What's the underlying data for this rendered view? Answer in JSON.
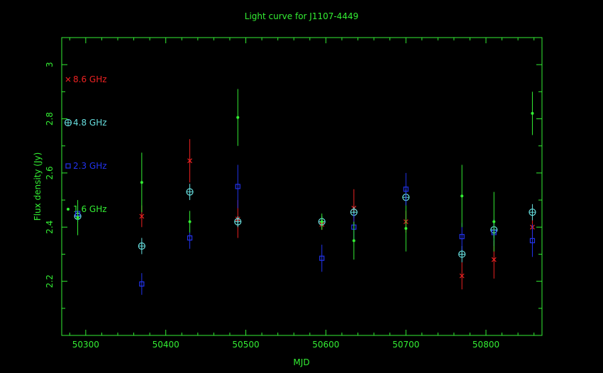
{
  "chart_data": {
    "type": "scatter",
    "title": "Light curve for J1107-4449",
    "xlabel": "MJD",
    "ylabel": "Flux density (Jy)",
    "xlim": [
      50270,
      50870
    ],
    "ylim": [
      2.0,
      3.1
    ],
    "x_ticks": [
      50300,
      50400,
      50500,
      50600,
      50700,
      50800
    ],
    "y_ticks": [
      2.2,
      2.4,
      2.6,
      2.8,
      3
    ],
    "grid": false,
    "legend_position": "left",
    "colors": {
      "frame": "#33ee33",
      "text": "#33ee33",
      "title": "#33ee33"
    },
    "series": [
      {
        "name": "8.6 GHz",
        "marker": "cross",
        "color": "#ee2222",
        "points": [
          {
            "x": 50370,
            "y": 2.44,
            "err": 0.04
          },
          {
            "x": 50430,
            "y": 2.645,
            "err": 0.08
          },
          {
            "x": 50490,
            "y": 2.43,
            "err": 0.07
          },
          {
            "x": 50595,
            "y": 2.41,
            "err": 0.02
          },
          {
            "x": 50635,
            "y": 2.47,
            "err": 0.07
          },
          {
            "x": 50700,
            "y": 2.42,
            "err": 0.04
          },
          {
            "x": 50770,
            "y": 2.22,
            "err": 0.05
          },
          {
            "x": 50810,
            "y": 2.28,
            "err": 0.07
          },
          {
            "x": 50858,
            "y": 2.4,
            "err": 0.04
          }
        ]
      },
      {
        "name": "4.8 GHz",
        "marker": "circle-plus",
        "color": "#66dddd",
        "points": [
          {
            "x": 50290,
            "y": 2.44,
            "err": 0.02
          },
          {
            "x": 50370,
            "y": 2.33,
            "err": 0.03
          },
          {
            "x": 50430,
            "y": 2.53,
            "err": 0.03
          },
          {
            "x": 50490,
            "y": 2.42,
            "err": 0.02
          },
          {
            "x": 50595,
            "y": 2.42,
            "err": 0.02
          },
          {
            "x": 50635,
            "y": 2.455,
            "err": 0.02
          },
          {
            "x": 50700,
            "y": 2.51,
            "err": 0.03
          },
          {
            "x": 50770,
            "y": 2.3,
            "err": 0.03
          },
          {
            "x": 50810,
            "y": 2.39,
            "err": 0.03
          },
          {
            "x": 50858,
            "y": 2.455,
            "err": 0.03
          }
        ]
      },
      {
        "name": "2.3 GHz",
        "marker": "square",
        "color": "#2233ee",
        "points": [
          {
            "x": 50290,
            "y": 2.45,
            "err": 0.03
          },
          {
            "x": 50370,
            "y": 2.19,
            "err": 0.04
          },
          {
            "x": 50430,
            "y": 2.36,
            "err": 0.04
          },
          {
            "x": 50490,
            "y": 2.55,
            "err": 0.08
          },
          {
            "x": 50595,
            "y": 2.285,
            "err": 0.05
          },
          {
            "x": 50635,
            "y": 2.4,
            "err": 0.05
          },
          {
            "x": 50700,
            "y": 2.54,
            "err": 0.06
          },
          {
            "x": 50770,
            "y": 2.365,
            "err": 0.05
          },
          {
            "x": 50810,
            "y": 2.38,
            "err": 0.05
          },
          {
            "x": 50858,
            "y": 2.35,
            "err": 0.06
          }
        ]
      },
      {
        "name": "1.6 GHz",
        "marker": "dot",
        "color": "#33ee33",
        "points": [
          {
            "x": 50290,
            "y": 2.435,
            "err": 0.065
          },
          {
            "x": 50370,
            "y": 2.565,
            "err": 0.11
          },
          {
            "x": 50430,
            "y": 2.42,
            "err": 0.04
          },
          {
            "x": 50490,
            "y": 2.805,
            "err": 0.105
          },
          {
            "x": 50595,
            "y": 2.42,
            "err": 0.03
          },
          {
            "x": 50635,
            "y": 2.35,
            "err": 0.07
          },
          {
            "x": 50700,
            "y": 2.395,
            "err": 0.085
          },
          {
            "x": 50770,
            "y": 2.515,
            "err": 0.115
          },
          {
            "x": 50810,
            "y": 2.42,
            "err": 0.11
          },
          {
            "x": 50858,
            "y": 2.82,
            "err": 0.08
          }
        ]
      }
    ]
  }
}
